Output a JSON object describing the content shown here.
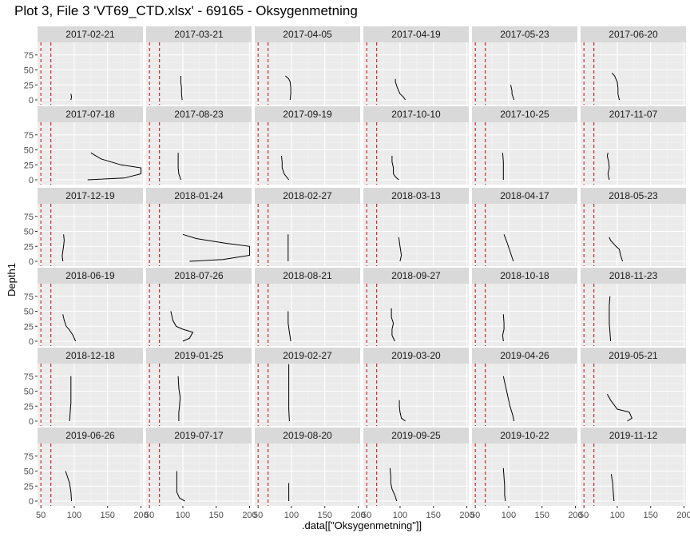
{
  "title": "Plot 3, File 3 'VT69_CTD.xlsx' - 69165  -  Oksygenmetning",
  "colors": {
    "panel_bg": "#ebebeb",
    "strip_bg": "#d9d9d9",
    "grid_major": "#ffffff",
    "grid_minor": "#f4f4f4",
    "line": "#000000",
    "ref_line": "#cc0000",
    "text": "#1a1a1a",
    "axis_text": "#4d4d4d"
  },
  "chart_data": {
    "type": "line",
    "facet": "date",
    "xlabel": ".data[[\"Oksygenmetning\"]]",
    "ylabel": "Depth1",
    "xlim": [
      45,
      203
    ],
    "ylim": [
      96,
      -8
    ],
    "x_ticks": [
      50,
      100,
      150,
      200
    ],
    "y_ticks": [
      0,
      25,
      50,
      75
    ],
    "y_reversed": true,
    "grid": true,
    "ref_lines_x": [
      50,
      65
    ],
    "ref_line_style": "dashed",
    "panels": [
      {
        "date": "2017-02-21",
        "x": [
          95,
          96,
          95
        ],
        "y": [
          0,
          5,
          10
        ]
      },
      {
        "date": "2017-03-21",
        "x": [
          99,
          98,
          98,
          97,
          97
        ],
        "y": [
          0,
          10,
          20,
          30,
          40
        ]
      },
      {
        "date": "2017-04-05",
        "x": [
          98,
          99,
          99,
          98,
          96,
          91
        ],
        "y": [
          0,
          10,
          20,
          30,
          35,
          40
        ]
      },
      {
        "date": "2017-04-19",
        "x": [
          108,
          105,
          100,
          96,
          93,
          93
        ],
        "y": [
          0,
          5,
          10,
          20,
          30,
          35
        ]
      },
      {
        "date": "2017-05-23",
        "x": [
          108,
          105,
          105,
          104,
          103
        ],
        "y": [
          0,
          10,
          15,
          20,
          25
        ]
      },
      {
        "date": "2017-06-20",
        "x": [
          103,
          101,
          101,
          100,
          96,
          92
        ],
        "y": [
          0,
          10,
          20,
          30,
          40,
          45
        ]
      },
      {
        "date": "2017-07-18",
        "x": [
          120,
          175,
          200,
          200,
          170,
          140,
          125
        ],
        "y": [
          0,
          3,
          10,
          20,
          25,
          35,
          45
        ]
      },
      {
        "date": "2017-08-23",
        "x": [
          97,
          94,
          93,
          93,
          93
        ],
        "y": [
          0,
          10,
          20,
          30,
          45
        ]
      },
      {
        "date": "2017-09-19",
        "x": [
          96,
          89,
          86,
          86,
          85
        ],
        "y": [
          0,
          10,
          20,
          30,
          40
        ]
      },
      {
        "date": "2017-10-10",
        "x": [
          98,
          93,
          90,
          90,
          88,
          88
        ],
        "y": [
          0,
          5,
          10,
          20,
          30,
          40
        ]
      },
      {
        "date": "2017-10-25",
        "x": [
          92,
          92,
          92,
          91
        ],
        "y": [
          0,
          15,
          30,
          45
        ]
      },
      {
        "date": "2017-11-07",
        "x": [
          88,
          86,
          88,
          87,
          85,
          86
        ],
        "y": [
          0,
          10,
          20,
          30,
          40,
          45
        ]
      },
      {
        "date": "2017-12-19",
        "x": [
          83,
          82,
          84,
          85,
          84
        ],
        "y": [
          0,
          10,
          25,
          35,
          45
        ]
      },
      {
        "date": "2018-01-24",
        "x": [
          110,
          160,
          200,
          200,
          165,
          120,
          100
        ],
        "y": [
          0,
          3,
          10,
          25,
          30,
          38,
          45
        ]
      },
      {
        "date": "2018-02-27",
        "x": [
          95,
          95,
          95,
          95
        ],
        "y": [
          0,
          15,
          30,
          45
        ]
      },
      {
        "date": "2018-03-13",
        "x": [
          100,
          102,
          100,
          98
        ],
        "y": [
          0,
          10,
          25,
          40
        ]
      },
      {
        "date": "2018-04-17",
        "x": [
          107,
          104,
          101,
          98,
          93
        ],
        "y": [
          0,
          10,
          20,
          30,
          45
        ]
      },
      {
        "date": "2018-05-23",
        "x": [
          108,
          105,
          103,
          98,
          90,
          88
        ],
        "y": [
          0,
          10,
          20,
          25,
          35,
          40
        ]
      },
      {
        "date": "2018-06-19",
        "x": [
          102,
          98,
          92,
          88,
          85,
          83
        ],
        "y": [
          0,
          10,
          20,
          25,
          35,
          45
        ]
      },
      {
        "date": "2018-07-26",
        "x": [
          100,
          110,
          115,
          100,
          90,
          85,
          82
        ],
        "y": [
          0,
          5,
          15,
          20,
          25,
          35,
          50
        ]
      },
      {
        "date": "2018-08-21",
        "x": [
          99,
          97,
          95,
          95,
          95
        ],
        "y": [
          0,
          15,
          30,
          40,
          50
        ]
      },
      {
        "date": "2018-09-27",
        "x": [
          92,
          88,
          88,
          90,
          87,
          87
        ],
        "y": [
          0,
          10,
          20,
          30,
          40,
          55
        ]
      },
      {
        "date": "2018-10-18",
        "x": [
          92,
          91,
          93,
          93,
          92
        ],
        "y": [
          0,
          10,
          20,
          30,
          45
        ]
      },
      {
        "date": "2018-11-23",
        "x": [
          90,
          89,
          88,
          88,
          88,
          89
        ],
        "y": [
          0,
          15,
          30,
          45,
          60,
          75
        ]
      },
      {
        "date": "2018-12-18",
        "x": [
          93,
          94,
          95,
          95,
          95,
          95
        ],
        "y": [
          0,
          15,
          30,
          45,
          60,
          75
        ]
      },
      {
        "date": "2019-01-25",
        "x": [
          94,
          94,
          95,
          96,
          94,
          93
        ],
        "y": [
          0,
          15,
          25,
          40,
          55,
          75
        ]
      },
      {
        "date": "2019-02-27",
        "x": [
          97,
          96,
          96,
          96,
          96,
          96
        ],
        "y": [
          0,
          20,
          40,
          60,
          80,
          95
        ]
      },
      {
        "date": "2019-03-20",
        "x": [
          108,
          102,
          100,
          99,
          99
        ],
        "y": [
          0,
          5,
          15,
          25,
          35
        ]
      },
      {
        "date": "2019-04-26",
        "x": [
          108,
          106,
          102,
          99,
          96,
          94,
          92
        ],
        "y": [
          0,
          10,
          25,
          40,
          55,
          65,
          75
        ]
      },
      {
        "date": "2019-05-21",
        "x": [
          115,
          122,
          118,
          100,
          90,
          85
        ],
        "y": [
          0,
          5,
          15,
          20,
          35,
          45
        ]
      },
      {
        "date": "2019-06-26",
        "x": [
          96,
          95,
          93,
          90,
          87
        ],
        "y": [
          0,
          15,
          30,
          40,
          50
        ]
      },
      {
        "date": "2019-07-17",
        "x": [
          103,
          95,
          91,
          91,
          91
        ],
        "y": [
          0,
          5,
          15,
          30,
          50
        ]
      },
      {
        "date": "2019-08-20",
        "x": [
          96,
          96,
          96
        ],
        "y": [
          0,
          15,
          30
        ]
      },
      {
        "date": "2019-09-25",
        "x": [
          95,
          92,
          88,
          86,
          86,
          85
        ],
        "y": [
          0,
          10,
          20,
          30,
          40,
          55
        ]
      },
      {
        "date": "2019-10-22",
        "x": [
          95,
          94,
          94,
          93,
          92
        ],
        "y": [
          0,
          10,
          25,
          40,
          55
        ]
      },
      {
        "date": "2019-11-12",
        "x": [
          95,
          94,
          93,
          91
        ],
        "y": [
          0,
          15,
          30,
          45
        ]
      }
    ]
  }
}
